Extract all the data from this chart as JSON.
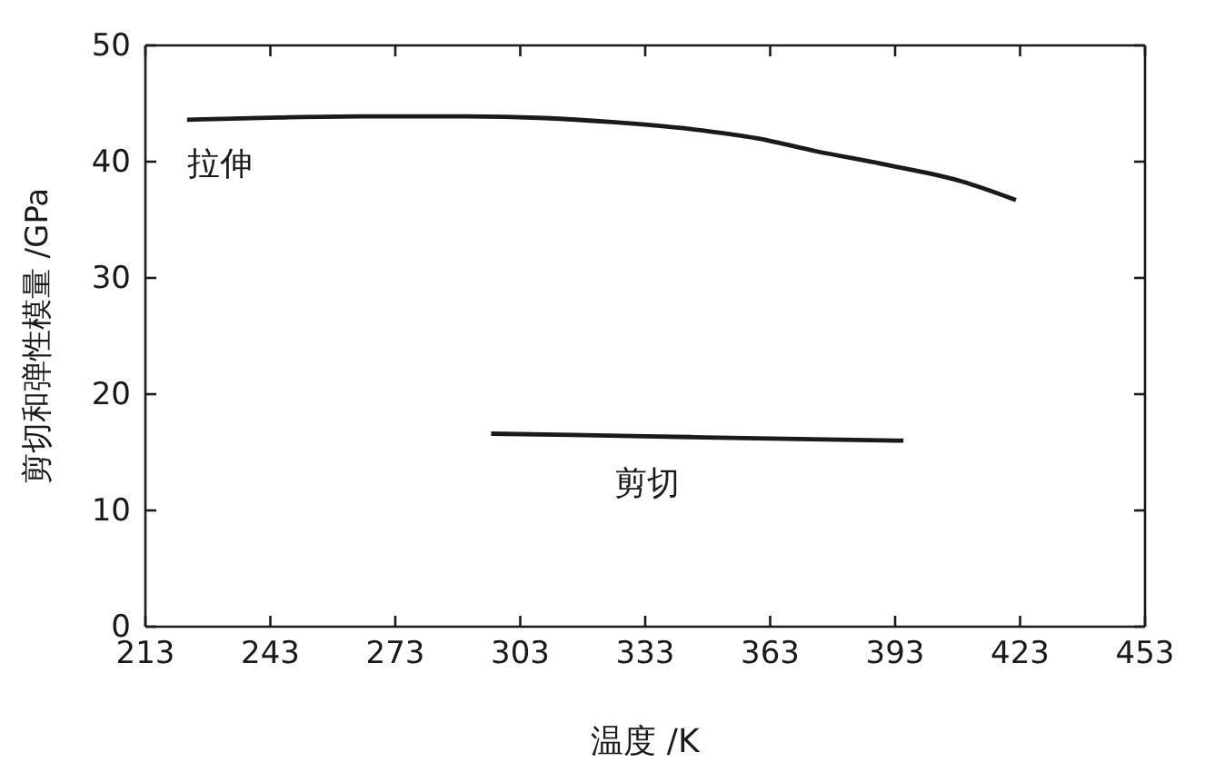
{
  "chart_data": {
    "type": "line",
    "xlabel": "温度 /K",
    "ylabel": "剪切和弹性模量 /GPa",
    "xlim": [
      213,
      453
    ],
    "xticks": [
      213,
      243,
      273,
      303,
      333,
      363,
      393,
      423,
      453
    ],
    "ylim": [
      0,
      50
    ],
    "yticks": [
      0,
      10,
      20,
      30,
      40,
      50
    ],
    "grid": false,
    "legend": false,
    "marker": "none",
    "line_style": "solid",
    "series": [
      {
        "name": "拉伸",
        "color": "#1a1a1a",
        "x": [
          223,
          245,
          265,
          290,
          309,
          325,
          344,
          360,
          374,
          390,
          409,
          422
        ],
        "values": [
          43.6,
          43.8,
          43.9,
          43.9,
          43.75,
          43.4,
          42.8,
          42,
          40.9,
          39.8,
          38.3,
          36.7
        ]
      },
      {
        "name": "剪切",
        "color": "#1a1a1a",
        "x": [
          296,
          330,
          360,
          395
        ],
        "values": [
          16.6,
          16.4,
          16.2,
          16.0
        ]
      }
    ]
  }
}
